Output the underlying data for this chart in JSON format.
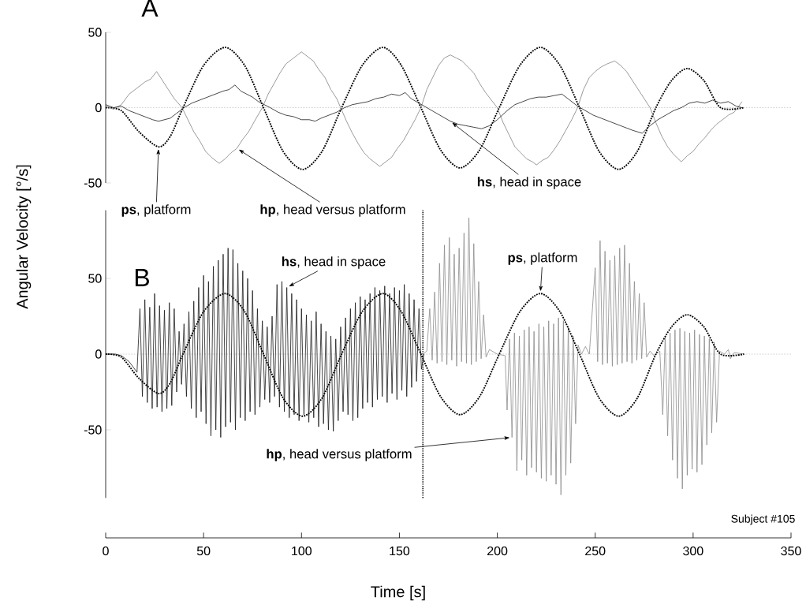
{
  "chart_data": [
    {
      "type": "line",
      "title": "A",
      "ylabel": "Angular Velocity [°/s]",
      "xlim": [
        0,
        350
      ],
      "ylim": [
        -50,
        50
      ],
      "yticks": [
        -50,
        0,
        50
      ],
      "tick_labels": "y",
      "ref_lines": [
        {
          "axis": "y",
          "value": 0,
          "color": "#9a9a9a",
          "line_style": "dotted"
        }
      ],
      "series": [
        {
          "color": "#000000",
          "line_style": "dotted",
          "x": [
            0,
            8,
            17,
            27,
            33,
            39.5,
            50,
            61,
            71,
            80.6,
            90.6,
            100.6,
            110.5,
            120.5,
            131,
            141.6,
            151,
            161,
            171,
            181,
            191,
            201,
            211.5,
            222,
            232,
            242,
            252,
            262,
            271.5,
            281,
            289,
            297,
            305.5,
            314,
            326
          ],
          "values": [
            0,
            -2,
            -16,
            -26,
            -19,
            0,
            28,
            40,
            28,
            0,
            -29,
            -41,
            -29,
            0,
            28,
            40,
            28,
            0,
            -28,
            -40,
            -28,
            0,
            28,
            40,
            28,
            0,
            -29,
            -41,
            -29,
            0,
            18,
            26,
            18,
            0,
            0
          ]
        },
        {
          "color": "#808080",
          "line_style": "solid",
          "x": [
            0,
            4,
            8,
            12,
            16,
            20,
            23,
            26,
            29,
            32,
            35,
            39,
            42,
            45,
            48,
            51,
            54,
            58,
            61,
            64,
            67,
            70,
            73,
            76,
            80,
            83,
            86,
            89,
            92,
            95,
            98,
            100,
            103,
            106,
            109,
            112,
            115,
            118,
            120,
            123,
            126,
            129,
            132,
            135,
            138,
            140,
            143,
            146,
            149,
            152,
            155,
            158,
            161,
            164,
            167,
            170,
            173,
            176,
            179,
            182,
            185,
            188,
            191,
            194,
            197,
            200,
            203,
            206,
            209,
            212,
            215,
            218,
            220,
            223,
            226,
            229,
            232,
            235,
            238,
            241,
            244,
            247,
            250,
            253,
            256,
            260,
            263,
            266,
            269,
            272,
            275,
            278,
            281,
            284,
            287,
            290,
            294,
            297,
            300,
            303,
            306,
            309,
            312,
            315,
            318,
            321,
            325
          ],
          "values": [
            1,
            -1,
            2,
            9,
            13,
            17,
            19,
            24,
            18,
            12,
            6,
            0,
            -8,
            -16,
            -22,
            -29,
            -33,
            -37,
            -34,
            -30,
            -27,
            -21,
            -16,
            -9,
            0,
            9,
            16,
            23,
            29,
            32,
            35,
            37,
            34,
            31,
            25,
            20,
            12,
            6,
            0,
            -9,
            -17,
            -24,
            -30,
            -34,
            -37,
            -39,
            -36,
            -33,
            -27,
            -22,
            -15,
            -8,
            0,
            12,
            20,
            28,
            33,
            35,
            33,
            31,
            27,
            23,
            16,
            10,
            5,
            0,
            -10,
            -18,
            -26,
            -30,
            -34,
            -36,
            -38,
            -35,
            -33,
            -28,
            -22,
            -15,
            -8,
            0,
            12,
            20,
            24,
            27,
            29,
            31,
            28,
            24,
            18,
            12,
            6,
            0,
            -10,
            -19,
            -26,
            -31,
            -36,
            -32,
            -29,
            -24,
            -20,
            -15,
            -11,
            -8,
            -5,
            -3,
            4
          ]
        },
        {
          "color": "#1a1a1a",
          "line_style": "solid",
          "x": [
            0,
            4,
            8,
            12,
            16,
            20,
            24,
            27,
            30,
            33,
            36,
            40,
            44,
            48,
            52,
            56,
            60,
            63,
            66,
            69,
            72,
            75,
            78,
            81,
            84,
            88,
            92,
            96,
            100,
            104,
            107,
            110,
            114,
            118,
            122,
            126,
            130,
            134,
            138,
            142,
            146,
            150,
            153,
            156,
            160,
            164,
            168,
            172,
            176,
            180,
            184,
            188,
            192,
            196,
            200,
            205,
            209,
            213,
            217,
            221,
            225,
            229,
            233,
            237,
            241,
            245,
            249,
            253,
            257,
            261,
            265,
            269,
            274,
            278,
            282,
            286,
            290,
            294,
            298,
            302,
            306,
            310,
            314,
            318,
            322,
            325
          ],
          "values": [
            2,
            0,
            1,
            -2,
            -4,
            -6,
            -8,
            -9,
            -8,
            -7,
            -4,
            0,
            3,
            5,
            7,
            9,
            11,
            12,
            15,
            11,
            9,
            7,
            4,
            2,
            0,
            -3,
            -5,
            -6,
            -8,
            -8,
            -9,
            -7,
            -5,
            -3,
            0,
            2,
            3,
            4,
            6,
            7,
            9,
            8,
            10,
            6,
            3,
            0,
            -3,
            -6,
            -9,
            -11,
            -12,
            -13,
            -14,
            -12,
            -8,
            -2,
            2,
            4,
            6,
            7,
            7,
            8,
            9,
            5,
            1,
            -2,
            -5,
            -7,
            -9,
            -11,
            -13,
            -15,
            -17,
            -12,
            -8,
            -5,
            -2,
            0,
            3,
            4,
            3,
            5,
            3,
            4,
            1,
            0
          ]
        }
      ],
      "annotations": [
        {
          "text": "**ps**, platform",
          "x": 27,
          "y": -26
        },
        {
          "text": "**hp**, head versus platform",
          "x": 67,
          "y": -27
        },
        {
          "text": "**hs**, head in space",
          "x": 176,
          "y": -9
        }
      ]
    },
    {
      "type": "line",
      "title": "B",
      "xlabel": "Time [s]",
      "xlim": [
        0,
        350
      ],
      "ylim": [
        -95,
        95
      ],
      "xticks": [
        0,
        50,
        100,
        150,
        200,
        250,
        300,
        350
      ],
      "yticks": [
        -50,
        0,
        50
      ],
      "ref_lines": [
        {
          "axis": "y",
          "value": 0,
          "color": "#9a9a9a",
          "line_style": "dotted"
        },
        {
          "axis": "x",
          "value": 162,
          "color": "#000000",
          "line_style": "dotted"
        }
      ],
      "series": [
        {
          "color": "#1a1a1a",
          "line_style": "solid",
          "x": [
            0,
            5,
            8,
            12,
            16,
            17.5,
            18.75,
            20,
            21.25,
            22.5,
            23.75,
            25,
            26.25,
            27.5,
            28.75,
            30,
            31.25,
            32.5,
            33.75,
            35,
            36.25,
            37.5,
            38.75,
            40,
            41.25,
            42.5,
            43.75,
            45,
            46.25,
            47.5,
            48.75,
            50,
            51.25,
            52.5,
            53.75,
            55,
            56.25,
            57.5,
            58.75,
            60,
            61.25,
            62.5,
            63.75,
            65,
            66.25,
            67.5,
            68.75,
            70,
            71.25,
            72.5,
            73.75,
            75,
            76.25,
            77.5,
            78.75,
            80,
            81.25,
            82.5,
            83.75,
            85,
            86.25,
            87.5,
            88.75,
            90,
            91.25,
            92.5,
            93.75,
            95,
            96.25,
            97.5,
            98.75,
            100,
            101.25,
            102.5,
            103.75,
            105,
            106.25,
            107.5,
            108.75,
            110,
            111.25,
            112.5,
            113.75,
            115,
            116.25,
            117.5,
            118.75,
            120,
            121.25,
            122.5,
            123.75,
            125,
            126.25,
            127.5,
            128.75,
            130,
            131.25,
            132.5,
            133.75,
            135,
            136.25,
            137.5,
            138.75,
            140,
            141.25,
            142.5,
            143.75,
            145,
            146.25,
            147.5,
            148.75,
            150,
            151.25,
            152.5,
            153.75,
            155,
            156.25,
            157.5,
            158.75,
            160,
            161.25,
            162.5
          ],
          "values": [
            0,
            0,
            -1,
            -5,
            -12,
            30,
            -28,
            36,
            -32,
            31,
            -36,
            40,
            -35,
            32,
            -38,
            29,
            -36,
            34,
            -34,
            30,
            -25,
            15,
            -20,
            20,
            -28,
            28,
            -36,
            35,
            -42,
            44,
            -38,
            52,
            -46,
            48,
            -54,
            58,
            -50,
            62,
            -55,
            66,
            -48,
            70,
            -45,
            69,
            -50,
            60,
            -42,
            55,
            -44,
            50,
            -38,
            42,
            -40,
            30,
            -35,
            22,
            -30,
            18,
            -32,
            25,
            -28,
            46,
            -35,
            48,
            -38,
            44,
            -42,
            40,
            -40,
            36,
            -44,
            30,
            -40,
            26,
            -45,
            22,
            -42,
            28,
            -48,
            20,
            -46,
            15,
            -50,
            12,
            -51,
            10,
            -44,
            18,
            -38,
            24,
            -40,
            30,
            -44,
            34,
            -42,
            38,
            -36,
            36,
            -32,
            40,
            -35,
            44,
            -30,
            42,
            -28,
            45,
            -32,
            40,
            -26,
            44,
            -30,
            42,
            -24,
            46,
            -28,
            40,
            -22,
            36,
            -18,
            30,
            -10,
            0
          ]
        },
        {
          "color": "#8c8c8c",
          "line_style": "solid",
          "x": [
            162,
            164,
            165.5,
            166.75,
            168,
            169.25,
            170.5,
            171.75,
            173,
            174.25,
            175.5,
            176.75,
            178,
            179.25,
            180.5,
            181.75,
            183,
            184.25,
            185.5,
            186.75,
            188,
            189.25,
            190.5,
            191.75,
            193,
            194.25,
            196,
            200,
            204,
            205,
            206.25,
            207.5,
            208.75,
            210,
            211.25,
            212.5,
            213.75,
            215,
            216.25,
            217.5,
            218.75,
            220,
            221.25,
            222.5,
            223.75,
            225,
            226.25,
            227.5,
            228.75,
            230,
            231.25,
            232.5,
            233.75,
            235,
            236.25,
            237.5,
            238.75,
            240,
            241.25,
            243,
            245,
            247,
            250,
            251.25,
            252.5,
            253.75,
            255,
            256.25,
            257.5,
            258.75,
            260,
            261.25,
            262.5,
            263.75,
            265,
            266.25,
            267.5,
            268.75,
            270,
            271.25,
            272.5,
            273.75,
            275,
            276.25,
            278,
            280,
            283,
            284.5,
            285.75,
            287,
            288.25,
            289.5,
            290.75,
            292,
            293.25,
            294.5,
            295.75,
            297,
            298.25,
            299.5,
            300.75,
            302,
            303.25,
            304.5,
            305.75,
            307,
            308.25,
            309.5,
            310.75,
            312,
            313.5,
            316,
            318,
            319,
            321,
            326
          ],
          "values": [
            0,
            2,
            30,
            -4,
            41,
            -6,
            60,
            -5,
            72,
            -7,
            77,
            -4,
            66,
            -8,
            70,
            -5,
            80,
            -6,
            90,
            -7,
            73,
            -5,
            48,
            -3,
            26,
            -2,
            3,
            0,
            -1,
            -37,
            10,
            -55,
            14,
            -77,
            12,
            -70,
            16,
            -80,
            18,
            -75,
            15,
            -78,
            20,
            -82,
            18,
            -84,
            22,
            -80,
            20,
            -86,
            24,
            -93,
            22,
            -80,
            18,
            -72,
            12,
            -46,
            6,
            0,
            5,
            0,
            57,
            -5,
            75,
            -7,
            68,
            -6,
            62,
            -8,
            65,
            -7,
            70,
            -6,
            72,
            -5,
            60,
            -6,
            48,
            -4,
            40,
            -3,
            34,
            -2,
            2,
            -1,
            2,
            -40,
            12,
            -54,
            14,
            -70,
            16,
            -82,
            17,
            -89,
            15,
            -80,
            14,
            -76,
            16,
            -78,
            13,
            -73,
            12,
            -60,
            10,
            -52,
            8,
            -45,
            2,
            0,
            3,
            -3,
            1,
            0
          ]
        },
        {
          "color": "#000000",
          "line_style": "dotted",
          "x": [
            0,
            8,
            17,
            27,
            33,
            39.5,
            50,
            61,
            71,
            80.6,
            90.6,
            100.6,
            110.5,
            120.5,
            131,
            141.6,
            151,
            161,
            171,
            181,
            191,
            201,
            211.5,
            222,
            232,
            242,
            252,
            262,
            271.5,
            281,
            289,
            297,
            305.5,
            314,
            326
          ],
          "values": [
            0,
            -2,
            -16,
            -26,
            -19,
            0,
            28,
            40,
            28,
            0,
            -29,
            -41,
            -29,
            0,
            28,
            40,
            28,
            0,
            -28,
            -40,
            -28,
            0,
            28,
            40,
            28,
            0,
            -29,
            -41,
            -29,
            0,
            18,
            26,
            18,
            0,
            0
          ]
        }
      ],
      "annotations": [
        {
          "text": "**hs**, head in space",
          "x": 92.5,
          "y": 44
        },
        {
          "text": "**ps**, platform",
          "x": 222,
          "y": 40
        },
        {
          "text": "**hp**, head versus platform",
          "x": 207.5,
          "y": -55
        },
        "Subject #105"
      ]
    }
  ]
}
